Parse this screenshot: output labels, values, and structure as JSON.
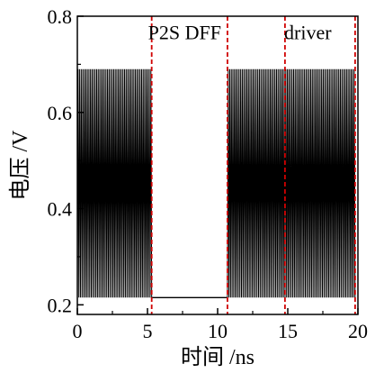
{
  "chart_data": {
    "type": "line",
    "xlabel": "时间 /ns",
    "ylabel": "电压 /V",
    "xlim": [
      0,
      20
    ],
    "ylim": [
      0.18,
      0.8
    ],
    "x_ticks": [
      0,
      5,
      10,
      15,
      20
    ],
    "x_tick_labels": [
      "0",
      "5",
      "10",
      "15",
      "20"
    ],
    "y_ticks": [
      0.2,
      0.4,
      0.6,
      0.8
    ],
    "y_tick_labels": [
      "0.2",
      "0.4",
      "0.6",
      "0.8"
    ],
    "grid": false,
    "signal": {
      "high": 0.69,
      "low": 0.215,
      "flat_level": 0.215,
      "segments": [
        {
          "start": 0.0,
          "end": 5.3,
          "mode": "oscillating",
          "cycles": 48
        },
        {
          "start": 5.3,
          "end": 10.7,
          "mode": "flat"
        },
        {
          "start": 10.7,
          "end": 19.8,
          "mode": "oscillating",
          "cycles": 82
        }
      ]
    },
    "markers": [
      {
        "x": 5.3,
        "color": "#d00000",
        "style": "dashed"
      },
      {
        "x": 10.7,
        "color": "#d00000",
        "style": "dashed"
      },
      {
        "x": 14.8,
        "color": "#d00000",
        "style": "dashed"
      },
      {
        "x": 19.8,
        "color": "#d00000",
        "style": "dashed"
      }
    ],
    "annotations": [
      {
        "text": "P2S DFF",
        "x": 5.3,
        "y": 0.79
      },
      {
        "text": "driver",
        "x": 15.0,
        "y": 0.79
      }
    ]
  }
}
